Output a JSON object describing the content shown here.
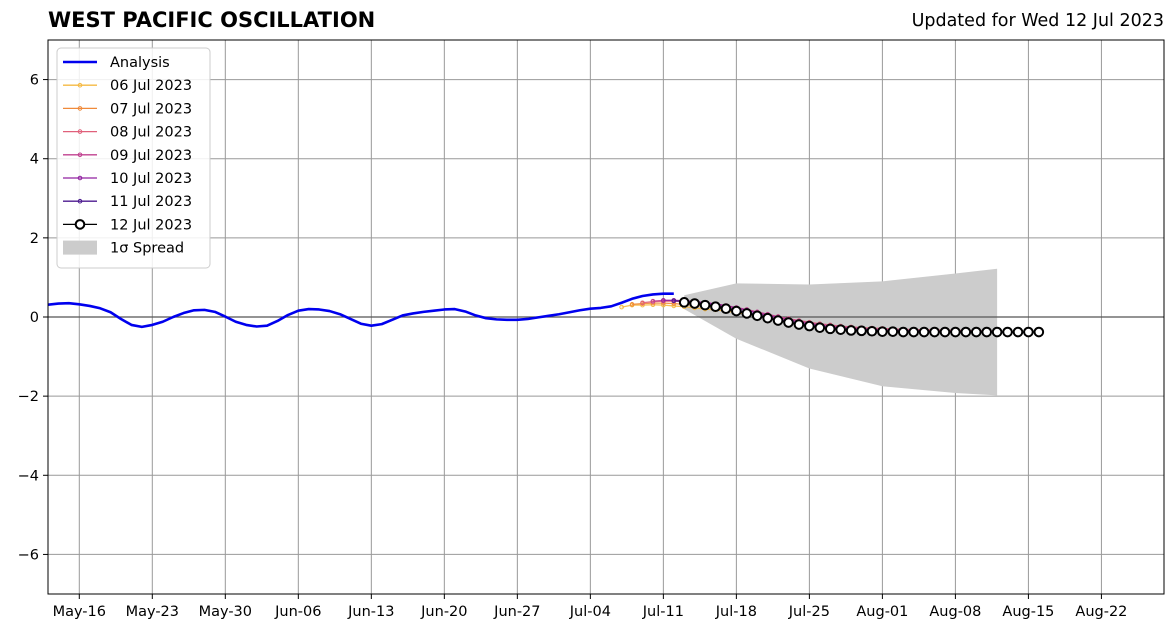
{
  "chart_data": {
    "type": "line",
    "title": "WEST PACIFIC OSCILLATION",
    "subtitle": "Updated for Wed 12 Jul 2023",
    "xlabel": "",
    "ylabel": "",
    "ylim": [
      -7,
      7
    ],
    "yticks": [
      -6,
      -4,
      -2,
      0,
      2,
      4,
      6
    ],
    "yticklabels": [
      "−6",
      "−4",
      "−2",
      "0",
      "2",
      "4",
      "6"
    ],
    "xlim": [
      "2023-05-13",
      "2023-08-28"
    ],
    "xticks": [
      "2023-05-16",
      "2023-05-23",
      "2023-05-30",
      "2023-06-06",
      "2023-06-13",
      "2023-06-20",
      "2023-06-27",
      "2023-07-04",
      "2023-07-11",
      "2023-07-18",
      "2023-07-25",
      "2023-08-01",
      "2023-08-08",
      "2023-08-15",
      "2023-08-22"
    ],
    "xticklabels": [
      "May-16",
      "May-23",
      "May-30",
      "Jun-06",
      "Jun-13",
      "Jun-20",
      "Jun-27",
      "Jul-04",
      "Jul-11",
      "Jul-18",
      "Jul-25",
      "Aug-01",
      "Aug-08",
      "Aug-15",
      "Aug-22"
    ],
    "grid": true,
    "legend_position": "top-left",
    "colors": {
      "analysis": "#0000ee",
      "spread": "#cccccc",
      "grid": "#999999",
      "zero_line": "#555555"
    },
    "analysis": {
      "name": "Analysis",
      "x": [
        "2023-05-13",
        "2023-05-14",
        "2023-05-15",
        "2023-05-16",
        "2023-05-17",
        "2023-05-18",
        "2023-05-19",
        "2023-05-20",
        "2023-05-21",
        "2023-05-22",
        "2023-05-23",
        "2023-05-24",
        "2023-05-25",
        "2023-05-26",
        "2023-05-27",
        "2023-05-28",
        "2023-05-29",
        "2023-05-30",
        "2023-05-31",
        "2023-06-01",
        "2023-06-02",
        "2023-06-03",
        "2023-06-04",
        "2023-06-05",
        "2023-06-06",
        "2023-06-07",
        "2023-06-08",
        "2023-06-09",
        "2023-06-10",
        "2023-06-11",
        "2023-06-12",
        "2023-06-13",
        "2023-06-14",
        "2023-06-15",
        "2023-06-16",
        "2023-06-17",
        "2023-06-18",
        "2023-06-19",
        "2023-06-20",
        "2023-06-21",
        "2023-06-22",
        "2023-06-23",
        "2023-06-24",
        "2023-06-25",
        "2023-06-26",
        "2023-06-27",
        "2023-06-28",
        "2023-06-29",
        "2023-06-30",
        "2023-07-01",
        "2023-07-02",
        "2023-07-03",
        "2023-07-04",
        "2023-07-05",
        "2023-07-06",
        "2023-07-07",
        "2023-07-08",
        "2023-07-09",
        "2023-07-10",
        "2023-07-11",
        "2023-07-12"
      ],
      "y": [
        0.31,
        0.34,
        0.35,
        0.32,
        0.28,
        0.22,
        0.12,
        -0.05,
        -0.2,
        -0.25,
        -0.2,
        -0.12,
        0.0,
        0.1,
        0.17,
        0.18,
        0.13,
        0.01,
        -0.12,
        -0.2,
        -0.24,
        -0.22,
        -0.1,
        0.05,
        0.16,
        0.2,
        0.19,
        0.15,
        0.07,
        -0.05,
        -0.17,
        -0.22,
        -0.18,
        -0.07,
        0.04,
        0.09,
        0.13,
        0.16,
        0.19,
        0.2,
        0.14,
        0.04,
        -0.03,
        -0.06,
        -0.07,
        -0.07,
        -0.05,
        -0.01,
        0.03,
        0.07,
        0.12,
        0.17,
        0.21,
        0.23,
        0.27,
        0.36,
        0.46,
        0.53,
        0.57,
        0.59,
        0.59
      ]
    },
    "forecasts": [
      {
        "name": "06 Jul 2023",
        "color": "#f5b942",
        "start": "2023-07-07",
        "y": [
          0.25,
          0.3,
          0.3,
          0.31,
          0.3,
          0.28,
          0.26,
          0.23,
          0.2,
          0.18,
          0.15,
          0.11,
          0.07,
          0.03,
          -0.02
        ]
      },
      {
        "name": "07 Jul 2023",
        "color": "#f08a3a",
        "start": "2023-07-08",
        "y": [
          0.32,
          0.34,
          0.35,
          0.35,
          0.34,
          0.32,
          0.3,
          0.27,
          0.24,
          0.2,
          0.16,
          0.11,
          0.06,
          0.01,
          -0.04,
          -0.08
        ]
      },
      {
        "name": "08 Jul 2023",
        "color": "#e0607a",
        "start": "2023-07-09",
        "y": [
          0.36,
          0.39,
          0.4,
          0.4,
          0.39,
          0.37,
          0.34,
          0.31,
          0.27,
          0.22,
          0.17,
          0.12,
          0.06,
          0.01,
          -0.04,
          -0.09,
          -0.13,
          -0.17,
          -0.2,
          -0.23,
          -0.25,
          -0.27,
          -0.28,
          -0.29,
          -0.3,
          -0.31,
          -0.32,
          -0.32,
          -0.33,
          -0.33,
          -0.34,
          -0.34,
          -0.35,
          -0.35,
          -0.36
        ]
      },
      {
        "name": "09 Jul 2023",
        "color": "#c0408f",
        "start": "2023-07-10",
        "y": [
          0.4,
          0.42,
          0.42,
          0.41,
          0.39,
          0.36,
          0.33,
          0.29,
          0.24,
          0.19,
          0.13,
          0.07,
          0.01,
          -0.05,
          -0.1,
          -0.15,
          -0.19,
          -0.22,
          -0.25,
          -0.27,
          -0.29,
          -0.3,
          -0.31,
          -0.32,
          -0.33,
          -0.34,
          -0.34,
          -0.35,
          -0.35,
          -0.36,
          -0.36,
          -0.37,
          -0.37,
          -0.38,
          -0.38
        ]
      },
      {
        "name": "10 Jul 2023",
        "color": "#9020a0",
        "start": "2023-07-11",
        "y": [
          0.42,
          0.42,
          0.41,
          0.39,
          0.36,
          0.33,
          0.28,
          0.23,
          0.17,
          0.1,
          0.04,
          -0.02,
          -0.08,
          -0.13,
          -0.18,
          -0.22,
          -0.25,
          -0.28,
          -0.3,
          -0.31,
          -0.32,
          -0.33,
          -0.34,
          -0.34,
          -0.35,
          -0.35,
          -0.36,
          -0.36,
          -0.37,
          -0.37,
          -0.37,
          -0.38,
          -0.38,
          -0.38,
          -0.38
        ]
      },
      {
        "name": "11 Jul 2023",
        "color": "#4b1a8f",
        "start": "2023-07-12",
        "y": [
          0.41,
          0.39,
          0.37,
          0.33,
          0.29,
          0.24,
          0.18,
          0.12,
          0.06,
          0.0,
          -0.06,
          -0.12,
          -0.17,
          -0.21,
          -0.25,
          -0.28,
          -0.3,
          -0.32,
          -0.33,
          -0.34,
          -0.35,
          -0.36,
          -0.36,
          -0.37,
          -0.37,
          -0.37,
          -0.38,
          -0.38,
          -0.38,
          -0.38,
          -0.38,
          -0.38,
          -0.39,
          -0.39,
          -0.39
        ]
      },
      {
        "name": "12 Jul 2023",
        "color": "#000000",
        "start": "2023-07-13",
        "y": [
          0.37,
          0.34,
          0.3,
          0.26,
          0.21,
          0.15,
          0.09,
          0.03,
          -0.03,
          -0.09,
          -0.14,
          -0.19,
          -0.23,
          -0.27,
          -0.3,
          -0.32,
          -0.34,
          -0.35,
          -0.36,
          -0.37,
          -0.37,
          -0.38,
          -0.38,
          -0.38,
          -0.38,
          -0.38,
          -0.38,
          -0.38,
          -0.38,
          -0.38,
          -0.38,
          -0.38,
          -0.38,
          -0.38,
          -0.38
        ]
      }
    ],
    "spread": {
      "name": "1σ Spread",
      "x": [
        "2023-07-13",
        "2023-07-18",
        "2023-07-25",
        "2023-08-01",
        "2023-08-08",
        "2023-08-12"
      ],
      "upper": [
        0.55,
        0.85,
        0.82,
        0.9,
        1.1,
        1.22
      ],
      "lower": [
        0.2,
        -0.55,
        -1.3,
        -1.75,
        -1.92,
        -1.98
      ]
    }
  }
}
